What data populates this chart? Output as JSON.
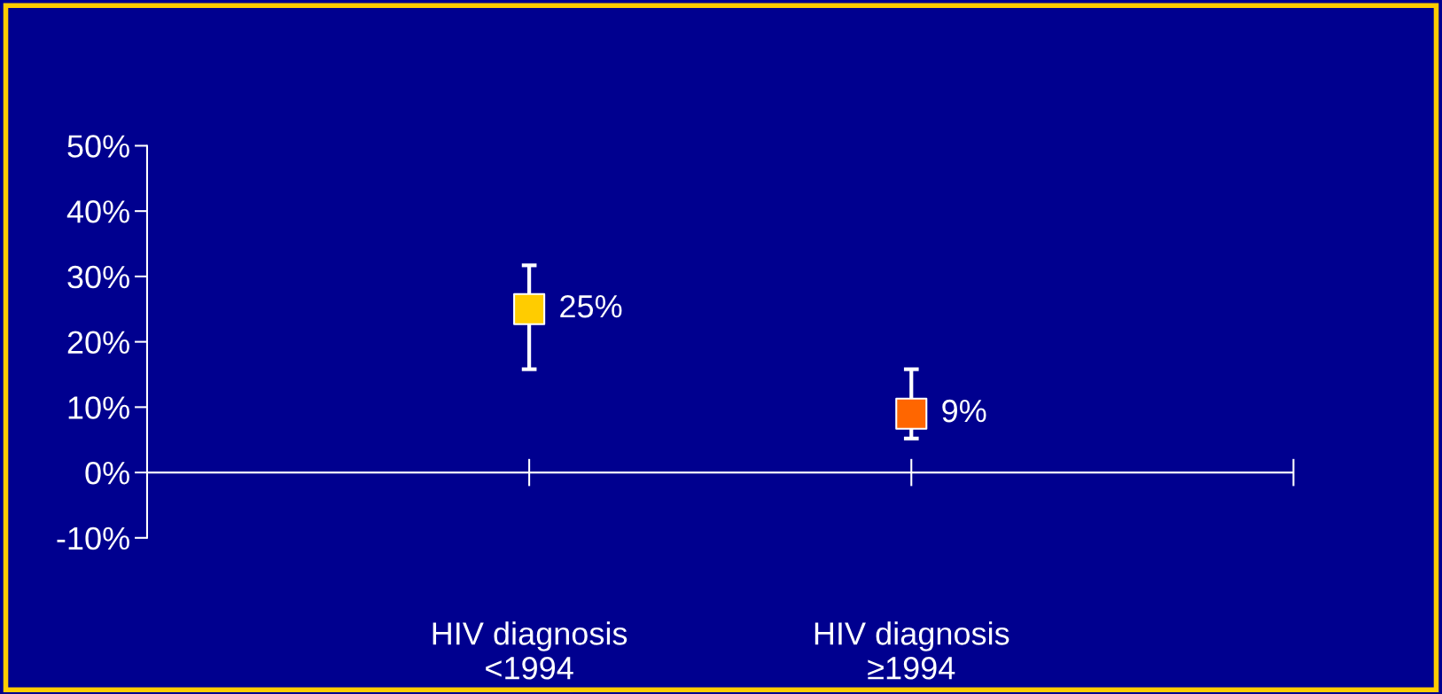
{
  "chart_data": {
    "type": "scatter",
    "categories": [
      "HIV diagnosis\n<1994",
      "HIV diagnosis\n≥1994"
    ],
    "series": [
      {
        "values": [
          25,
          9
        ],
        "colors": [
          "#ffcc00",
          "#ff6600"
        ],
        "errors": [
          [
            15.8,
            31.7
          ],
          [
            5.2,
            15.8
          ]
        ],
        "value_labels": [
          "25%",
          "9%"
        ]
      }
    ],
    "ylim": [
      -10,
      50
    ],
    "yticks": [
      {
        "value": -10,
        "label": "-10%"
      },
      {
        "value": 0,
        "label": "0%"
      },
      {
        "value": 10,
        "label": "10%"
      },
      {
        "value": 20,
        "label": "20%"
      },
      {
        "value": 30,
        "label": "30%"
      },
      {
        "value": 40,
        "label": "40%"
      },
      {
        "value": 50,
        "label": "50%"
      }
    ],
    "ref_lines": [
      {
        "axis": "y",
        "value": 0,
        "color": "#ffffff"
      }
    ],
    "marker": "square",
    "grid": false,
    "legend": false
  }
}
